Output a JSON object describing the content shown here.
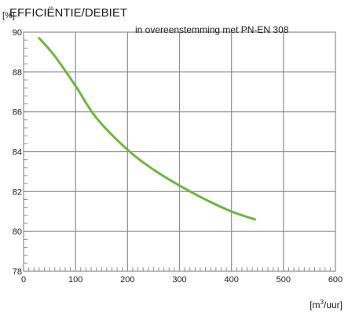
{
  "chart_data": {
    "type": "line",
    "title": "EFFICIËNTIE/DEBIET",
    "subtitle": "in overeenstemming met PN-EN 308",
    "ylabel": "[%]",
    "xlabel_base": "[m",
    "xlabel_sup": "3",
    "xlabel_tail": "/uur]",
    "xlim": [
      0,
      600
    ],
    "ylim": [
      78,
      90
    ],
    "xticks": [
      0,
      100,
      200,
      300,
      400,
      500,
      600
    ],
    "yticks": [
      78,
      80,
      82,
      84,
      86,
      88,
      90
    ],
    "grid": true,
    "series": [
      {
        "color": "#72b443",
        "x": [
          30,
          60,
          100,
          140,
          200,
          250,
          300,
          350,
          400,
          445
        ],
        "y": [
          89.7,
          88.8,
          87.3,
          85.7,
          84.1,
          83.1,
          82.3,
          81.6,
          81.0,
          80.6
        ]
      }
    ]
  }
}
